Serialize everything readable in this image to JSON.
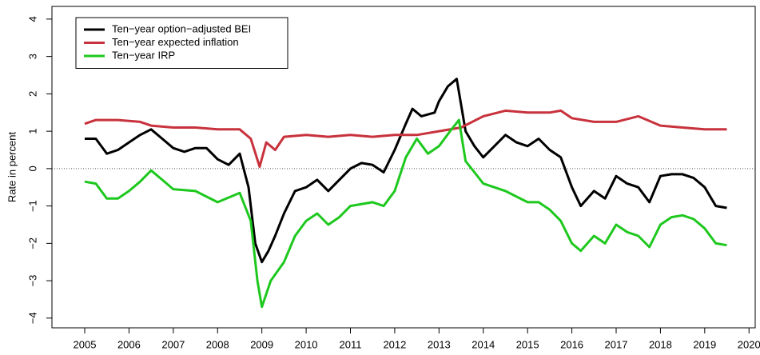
{
  "chart_data": {
    "type": "line",
    "ylabel": "Rate in percent",
    "xlim": [
      2004.26,
      2020.14
    ],
    "ylim": [
      -4.26,
      4.34
    ],
    "xticks": [
      2005,
      2006,
      2007,
      2008,
      2009,
      2010,
      2011,
      2012,
      2013,
      2014,
      2015,
      2016,
      2017,
      2018,
      2019,
      2020
    ],
    "yticks": [
      {
        "value": -4,
        "label": "−4"
      },
      {
        "value": -3,
        "label": "−3"
      },
      {
        "value": -2,
        "label": "−2"
      },
      {
        "value": -1,
        "label": "−1"
      },
      0,
      1,
      2,
      3,
      4
    ],
    "reference_line": 0,
    "legend": "top-left",
    "series": [
      {
        "name": "Ten−year option−adjusted BEI",
        "color": "#000000",
        "x": [
          2005.0,
          2005.25,
          2005.5,
          2005.75,
          2006.0,
          2006.25,
          2006.5,
          2006.75,
          2007.0,
          2007.25,
          2007.5,
          2007.75,
          2008.0,
          2008.25,
          2008.5,
          2008.7,
          2008.85,
          2009.0,
          2009.15,
          2009.3,
          2009.5,
          2009.75,
          2010.0,
          2010.25,
          2010.5,
          2010.75,
          2011.0,
          2011.25,
          2011.5,
          2011.75,
          2012.0,
          2012.25,
          2012.4,
          2012.6,
          2012.9,
          2013.0,
          2013.2,
          2013.4,
          2013.6,
          2013.8,
          2014.0,
          2014.25,
          2014.5,
          2014.75,
          2015.0,
          2015.25,
          2015.5,
          2015.75,
          2016.0,
          2016.2,
          2016.5,
          2016.75,
          2017.0,
          2017.25,
          2017.5,
          2017.75,
          2018.0,
          2018.25,
          2018.5,
          2018.75,
          2019.0,
          2019.25,
          2019.5
        ],
        "values": [
          0.8,
          0.8,
          0.4,
          0.5,
          0.7,
          0.9,
          1.05,
          0.8,
          0.55,
          0.45,
          0.55,
          0.55,
          0.25,
          0.1,
          0.4,
          -0.5,
          -2.0,
          -2.5,
          -2.2,
          -1.8,
          -1.2,
          -0.6,
          -0.5,
          -0.3,
          -0.6,
          -0.3,
          0.0,
          0.15,
          0.1,
          -0.1,
          0.5,
          1.2,
          1.6,
          1.4,
          1.5,
          1.8,
          2.2,
          2.4,
          1.0,
          0.6,
          0.3,
          0.6,
          0.9,
          0.7,
          0.6,
          0.8,
          0.5,
          0.3,
          -0.5,
          -1.0,
          -0.6,
          -0.8,
          -0.2,
          -0.4,
          -0.5,
          -0.9,
          -0.2,
          -0.15,
          -0.15,
          -0.25,
          -0.5,
          -1.0,
          -1.05
        ]
      },
      {
        "name": "Ten−year expected inflation",
        "color": "#c8323c",
        "x": [
          2005.0,
          2005.25,
          2005.75,
          2006.25,
          2006.5,
          2007.0,
          2007.5,
          2008.0,
          2008.5,
          2008.75,
          2008.95,
          2009.1,
          2009.3,
          2009.5,
          2010.0,
          2010.5,
          2011.0,
          2011.5,
          2012.0,
          2012.5,
          2013.0,
          2013.5,
          2014.0,
          2014.5,
          2015.0,
          2015.5,
          2015.75,
          2016.0,
          2016.5,
          2017.0,
          2017.5,
          2018.0,
          2018.5,
          2019.0,
          2019.5
        ],
        "values": [
          1.2,
          1.3,
          1.3,
          1.25,
          1.15,
          1.1,
          1.1,
          1.05,
          1.05,
          0.8,
          0.05,
          0.7,
          0.5,
          0.85,
          0.9,
          0.85,
          0.9,
          0.85,
          0.9,
          0.9,
          1.0,
          1.1,
          1.4,
          1.55,
          1.5,
          1.5,
          1.55,
          1.35,
          1.25,
          1.25,
          1.4,
          1.15,
          1.1,
          1.05,
          1.05
        ]
      },
      {
        "name": "Ten−year IRP",
        "color": "#1ec81e",
        "x": [
          2005.0,
          2005.25,
          2005.5,
          2005.75,
          2006.0,
          2006.25,
          2006.5,
          2006.75,
          2007.0,
          2007.5,
          2008.0,
          2008.5,
          2008.75,
          2008.9,
          2009.0,
          2009.2,
          2009.5,
          2009.75,
          2010.0,
          2010.25,
          2010.5,
          2010.75,
          2011.0,
          2011.5,
          2011.75,
          2012.0,
          2012.25,
          2012.5,
          2012.75,
          2013.0,
          2013.25,
          2013.45,
          2013.6,
          2013.8,
          2014.0,
          2014.5,
          2015.0,
          2015.25,
          2015.5,
          2015.75,
          2016.0,
          2016.2,
          2016.5,
          2016.75,
          2017.0,
          2017.25,
          2017.5,
          2017.75,
          2018.0,
          2018.25,
          2018.5,
          2018.75,
          2019.0,
          2019.25,
          2019.5
        ],
        "values": [
          -0.35,
          -0.4,
          -0.8,
          -0.8,
          -0.6,
          -0.35,
          -0.05,
          -0.3,
          -0.55,
          -0.6,
          -0.9,
          -0.65,
          -1.4,
          -3.0,
          -3.7,
          -3.0,
          -2.5,
          -1.8,
          -1.4,
          -1.2,
          -1.5,
          -1.3,
          -1.0,
          -0.9,
          -1.0,
          -0.6,
          0.3,
          0.8,
          0.4,
          0.6,
          1.0,
          1.3,
          0.2,
          -0.1,
          -0.4,
          -0.6,
          -0.9,
          -0.9,
          -1.1,
          -1.4,
          -2.0,
          -2.2,
          -1.8,
          -2.0,
          -1.5,
          -1.7,
          -1.8,
          -2.1,
          -1.5,
          -1.3,
          -1.25,
          -1.35,
          -1.6,
          -2.0,
          -2.05
        ]
      }
    ]
  }
}
